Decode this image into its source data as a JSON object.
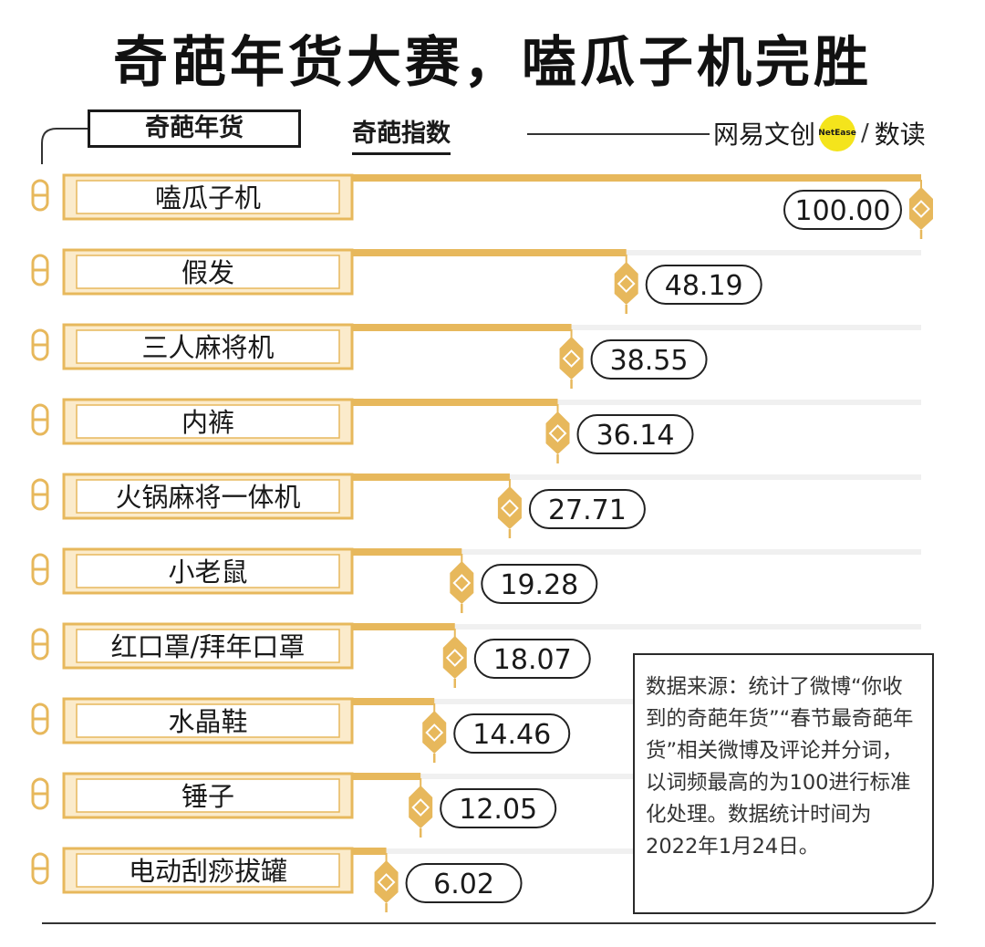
{
  "title": "奇葩年货大赛，嗑瓜子机完胜",
  "header": {
    "category_label": "奇葩年货",
    "index_label": "奇葩指数"
  },
  "brand": {
    "name": "网易文创",
    "badge": "NetEase",
    "slash": "/",
    "section": "数读"
  },
  "note": "数据来源：统计了微博“你收到的奇葩年货”“春节最奇葩年货”相关微博及评论并分词，以词频最高的为100进行标准化处理。数据统计时间为2022年1月24日。",
  "colors": {
    "accent": "#E7B85C",
    "accent_light": "#FBEBCB",
    "track": "#F0F0F0",
    "text": "#1a1a1a"
  },
  "chart_data": {
    "type": "bar",
    "orientation": "horizontal",
    "categories": [
      "嗑瓜子机",
      "假发",
      "三人麻将机",
      "内裤",
      "火锅麻将一体机",
      "小老鼠",
      "红口罩/拜年口罩",
      "水晶鞋",
      "锤子",
      "电动刮痧拔罐"
    ],
    "values": [
      100.0,
      48.19,
      38.55,
      36.14,
      27.71,
      19.28,
      18.07,
      14.46,
      12.05,
      6.02
    ],
    "value_labels": [
      "100.00",
      "48.19",
      "38.55",
      "36.14",
      "27.71",
      "19.28",
      "18.07",
      "14.46",
      "12.05",
      "6.02"
    ],
    "xlim": [
      0,
      100
    ],
    "grid": false
  }
}
